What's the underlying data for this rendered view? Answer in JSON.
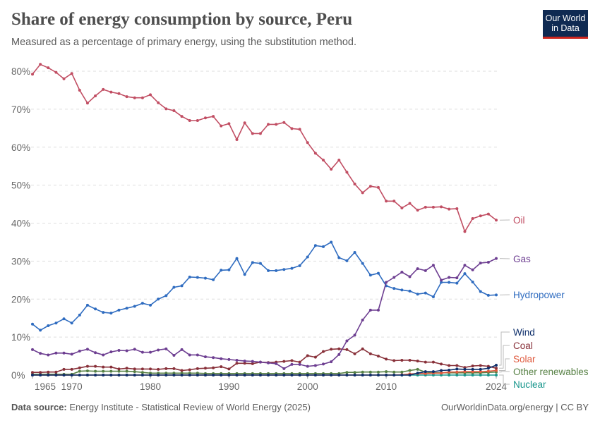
{
  "header": {
    "title": "Share of energy consumption by source, Peru",
    "subtitle": "Measured as a percentage of primary energy, using the substitution method.",
    "logo_line1": "Our World",
    "logo_line2": "in Data"
  },
  "footer": {
    "source_label": "Data source:",
    "source_text": "Energy Institute - Statistical Review of World Energy (2025)",
    "credit": "OurWorldinData.org/energy | CC BY"
  },
  "chart_data": {
    "type": "line",
    "title": "Share of energy consumption by source, Peru",
    "xlabel": "",
    "ylabel": "",
    "xlim": [
      1965,
      2024
    ],
    "ylim": [
      0,
      80
    ],
    "grid": true,
    "legend": "right, inline labels",
    "x_ticks": [
      "1965",
      "1970",
      "1980",
      "1990",
      "2000",
      "2010",
      "2024"
    ],
    "y_ticks": [
      "0%",
      "10%",
      "20%",
      "30%",
      "40%",
      "50%",
      "60%",
      "70%",
      "80%"
    ],
    "y_tick_values": [
      0,
      10,
      20,
      30,
      40,
      50,
      60,
      70,
      80
    ],
    "x_tick_values": [
      1965,
      1970,
      1980,
      1990,
      2000,
      2010,
      2024
    ],
    "x_start": 1965,
    "series": [
      {
        "name": "Oil",
        "color": "#c14e63",
        "values": [
          79.2,
          81.8,
          80.9,
          79.7,
          78.0,
          79.4,
          75.0,
          71.6,
          73.5,
          75.2,
          74.5,
          74.1,
          73.3,
          73.0,
          73.0,
          73.8,
          71.7,
          70.1,
          69.6,
          68.1,
          67.0,
          67.0,
          67.7,
          68.1,
          65.6,
          66.2,
          62.0,
          66.4,
          63.6,
          63.6,
          66.0,
          66.0,
          66.5,
          64.9,
          64.7,
          61.2,
          58.4,
          56.6,
          54.2,
          56.6,
          53.4,
          50.3,
          48.0,
          49.7,
          49.4,
          45.8,
          45.8,
          44.0,
          45.2,
          43.4,
          44.2,
          44.2,
          44.3,
          43.7,
          43.8,
          37.8,
          41.2,
          41.9,
          42.4,
          40.8
        ]
      },
      {
        "name": "Gas",
        "color": "#6d3e91",
        "values": [
          6.7,
          5.7,
          5.3,
          5.8,
          5.8,
          5.5,
          6.3,
          6.8,
          5.9,
          5.3,
          6.1,
          6.5,
          6.4,
          6.8,
          6.0,
          6.0,
          6.6,
          6.9,
          5.2,
          6.7,
          5.3,
          5.3,
          4.8,
          4.6,
          4.3,
          4.1,
          3.9,
          3.7,
          3.6,
          3.4,
          3.2,
          3.0,
          1.7,
          2.8,
          2.8,
          2.3,
          2.5,
          2.9,
          3.5,
          5.4,
          9.0,
          10.5,
          14.5,
          17.1,
          17.1,
          24.4,
          25.7,
          27.1,
          25.9,
          28.0,
          27.5,
          28.9,
          25.0,
          25.7,
          25.6,
          28.9,
          27.7,
          29.5,
          29.7,
          30.7
        ]
      },
      {
        "name": "Hydropower",
        "color": "#2f6cc0",
        "values": [
          13.4,
          11.8,
          13.0,
          13.7,
          14.8,
          13.7,
          15.8,
          18.4,
          17.4,
          16.5,
          16.3,
          17.1,
          17.6,
          18.1,
          18.9,
          18.4,
          20.0,
          20.9,
          23.1,
          23.5,
          25.8,
          25.7,
          25.5,
          25.1,
          27.6,
          27.7,
          30.7,
          26.5,
          29.6,
          29.4,
          27.5,
          27.5,
          27.8,
          28.1,
          28.8,
          31.1,
          34.1,
          33.8,
          35.0,
          30.9,
          30.1,
          32.3,
          29.4,
          26.3,
          26.8,
          23.5,
          22.8,
          22.4,
          22.1,
          21.3,
          21.6,
          20.6,
          24.4,
          24.4,
          24.2,
          26.7,
          24.5,
          22.0,
          21.0,
          21.1
        ]
      },
      {
        "name": "Wind",
        "color": "#0e2f6b",
        "values": [
          0,
          0,
          0,
          0,
          0,
          0,
          0,
          0,
          0,
          0,
          0,
          0,
          0,
          0,
          0,
          0,
          0,
          0,
          0,
          0,
          0,
          0,
          0,
          0,
          0,
          0,
          0,
          0,
          0,
          0,
          0,
          0,
          0,
          0,
          0,
          0,
          0,
          0,
          0,
          0,
          0,
          0,
          0,
          0,
          0,
          0,
          0,
          0,
          0,
          0.5,
          0.9,
          0.9,
          1.2,
          1.3,
          1.6,
          1.5,
          1.5,
          1.5,
          1.8,
          2.6
        ]
      },
      {
        "name": "Coal",
        "color": "#883039",
        "values": [
          0.7,
          0.7,
          0.8,
          0.8,
          1.5,
          1.5,
          1.9,
          2.3,
          2.3,
          2.1,
          2.1,
          1.6,
          1.8,
          1.6,
          1.6,
          1.6,
          1.5,
          1.7,
          1.7,
          1.2,
          1.4,
          1.7,
          1.8,
          1.9,
          2.2,
          1.6,
          3.1,
          3.1,
          3.0,
          3.4,
          3.3,
          3.4,
          3.6,
          3.8,
          3.4,
          5.1,
          4.7,
          6.2,
          6.8,
          6.9,
          6.7,
          5.6,
          6.9,
          5.6,
          5.0,
          4.2,
          3.8,
          3.9,
          3.9,
          3.7,
          3.4,
          3.4,
          2.9,
          2.5,
          2.5,
          2.0,
          2.4,
          2.5,
          2.3,
          1.8
        ]
      },
      {
        "name": "Solar",
        "color": "#df5a3e",
        "values": [
          0,
          0,
          0,
          0,
          0,
          0,
          0,
          0,
          0,
          0,
          0,
          0,
          0,
          0,
          0,
          0,
          0,
          0,
          0,
          0,
          0,
          0,
          0,
          0,
          0,
          0,
          0,
          0,
          0,
          0,
          0,
          0,
          0,
          0,
          0,
          0,
          0,
          0,
          0,
          0,
          0,
          0,
          0,
          0,
          0,
          0,
          0,
          0.1,
          0.3,
          0.4,
          0.4,
          0.5,
          0.5,
          0.8,
          0.8,
          0.9,
          0.9,
          0.9,
          1.0,
          1.2
        ]
      },
      {
        "name": "Other renewables",
        "color": "#578145",
        "values": [
          0.2,
          0.2,
          0.2,
          0.2,
          0.2,
          0.2,
          1.0,
          1.1,
          1.0,
          1.0,
          1.0,
          1.0,
          1.0,
          0.9,
          0.7,
          0.5,
          0.5,
          0.5,
          0.5,
          0.5,
          0.5,
          0.5,
          0.4,
          0.4,
          0.4,
          0.4,
          0.4,
          0.4,
          0.4,
          0.4,
          0.4,
          0.4,
          0.4,
          0.4,
          0.4,
          0.4,
          0.4,
          0.4,
          0.4,
          0.4,
          0.7,
          0.7,
          0.8,
          0.8,
          0.8,
          0.9,
          0.8,
          0.8,
          1.2,
          1.5,
          0.8,
          0.6,
          0.6,
          0.6,
          0.6,
          0.6,
          0.6,
          0.6,
          0.7,
          0.8
        ]
      },
      {
        "name": "Nuclear",
        "color": "#18968c",
        "values": [
          0,
          0,
          0,
          0,
          0,
          0,
          0,
          0,
          0,
          0,
          0,
          0,
          0,
          0,
          0,
          0,
          0,
          0,
          0,
          0,
          0,
          0,
          0,
          0,
          0,
          0,
          0,
          0,
          0,
          0,
          0,
          0,
          0,
          0,
          0,
          0,
          0,
          0,
          0,
          0,
          0,
          0,
          0,
          0,
          0,
          0,
          0,
          0,
          0,
          0,
          0,
          0,
          0,
          0,
          0,
          0,
          0,
          0,
          0,
          0
        ]
      }
    ]
  }
}
